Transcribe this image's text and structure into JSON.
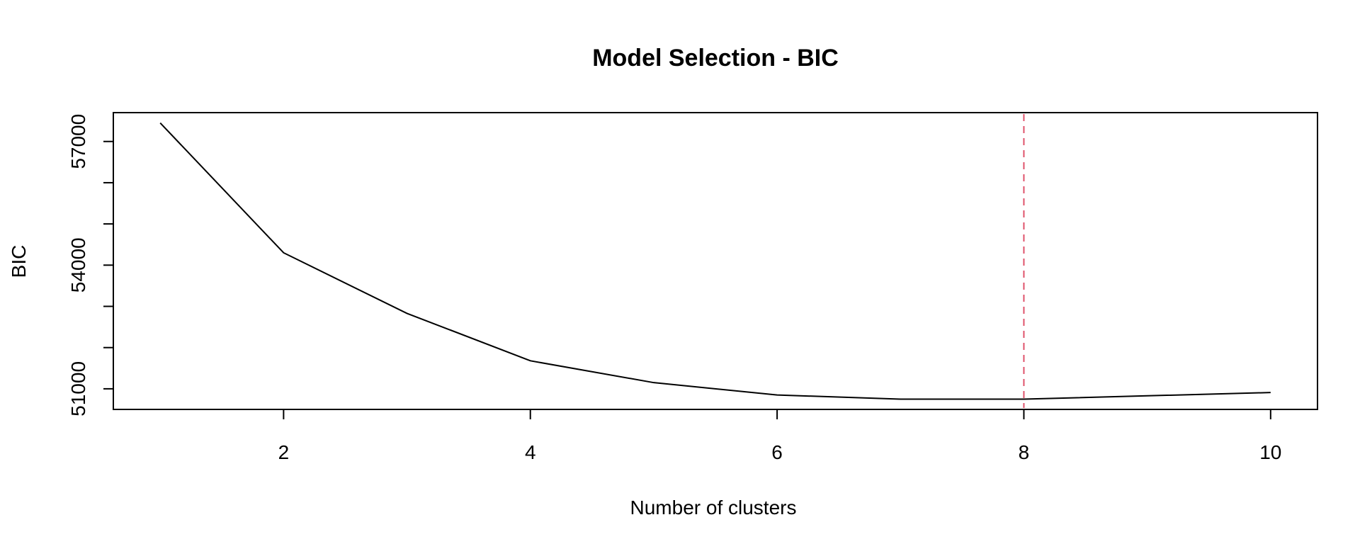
{
  "chart_data": {
    "type": "line",
    "title": "Model Selection - BIC",
    "xlabel": "Number of clusters",
    "ylabel": "BIC",
    "x": [
      1,
      2,
      3,
      4,
      5,
      6,
      7,
      8,
      9,
      10
    ],
    "series": [
      {
        "values": [
          57450,
          54300,
          52830,
          51680,
          51150,
          50850,
          50750,
          50750,
          50830,
          50910
        ],
        "color": "#000000"
      }
    ],
    "xlim": [
      0.62,
      10.38
    ],
    "ylim": [
      50500,
      57700
    ],
    "xticks": [
      2,
      4,
      6,
      8,
      10
    ],
    "xtick_labels": [
      "2",
      "4",
      "6",
      "8",
      "10"
    ],
    "yticks": [
      51000,
      52000,
      53000,
      54000,
      55000,
      56000,
      57000
    ],
    "ytick_labels": [
      "51000",
      "",
      "",
      "54000",
      "",
      "",
      "57000"
    ],
    "vline": {
      "x": 8,
      "color": "#DF536B",
      "style": "dashed"
    },
    "grid": false
  }
}
